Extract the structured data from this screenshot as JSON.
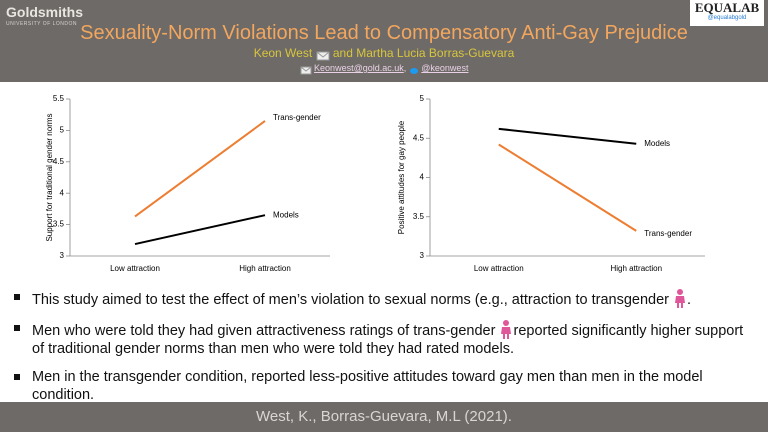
{
  "header": {
    "logo": "Goldsmiths",
    "logo_sub": "UNIVERSITY OF LONDON",
    "badge": "EQUALAB",
    "badge_handle": "@equalabgold",
    "title": "Sexuality-Norm Violations Lead to Compensatory Anti-Gay Prejudice",
    "author_1": "Keon West",
    "author_2": "and Martha Lucia Borras-Guevara",
    "email": "Keonwest@gold.ac.uk",
    "twitter": "@keonwest"
  },
  "chart_data": [
    {
      "type": "line",
      "y_label": "Support for traditional gender norms",
      "categories": [
        "Low attraction",
        "High attraction"
      ],
      "ylim": [
        3,
        5.5
      ],
      "yticks": [
        3,
        3.5,
        4,
        4.5,
        5,
        5.5
      ],
      "series": [
        {
          "name": "Trans-gender",
          "color": "#ed7d31",
          "values": [
            3.63,
            5.15
          ]
        },
        {
          "name": "Models",
          "color": "#000000",
          "values": [
            3.19,
            3.65
          ]
        }
      ]
    },
    {
      "type": "line",
      "y_label": "Positive attitudes for gay people",
      "categories": [
        "Low attraction",
        "High attraction"
      ],
      "ylim": [
        3,
        5
      ],
      "yticks": [
        3,
        3.5,
        4,
        4.5,
        5
      ],
      "series": [
        {
          "name": "Models",
          "color": "#000000",
          "values": [
            4.62,
            4.43
          ]
        },
        {
          "name": "Trans-gender",
          "color": "#ed7d31",
          "values": [
            4.42,
            3.32
          ]
        }
      ]
    }
  ],
  "bullets": [
    [
      "This study aimed to test the effect of men’s violation to sexual norms (e.g., attraction to transgender",
      "."
    ],
    [
      "Men who were told they had given attractiveness ratings of trans-gender",
      "reported significantly higher support of traditional gender norms than men who were told they had rated models."
    ],
    [
      "Men in the transgender condition, reported less-positive attitudes toward gay men than men in the model condition."
    ]
  ],
  "footer": "West, K., Borras-Guevara, M.L (2021)."
}
